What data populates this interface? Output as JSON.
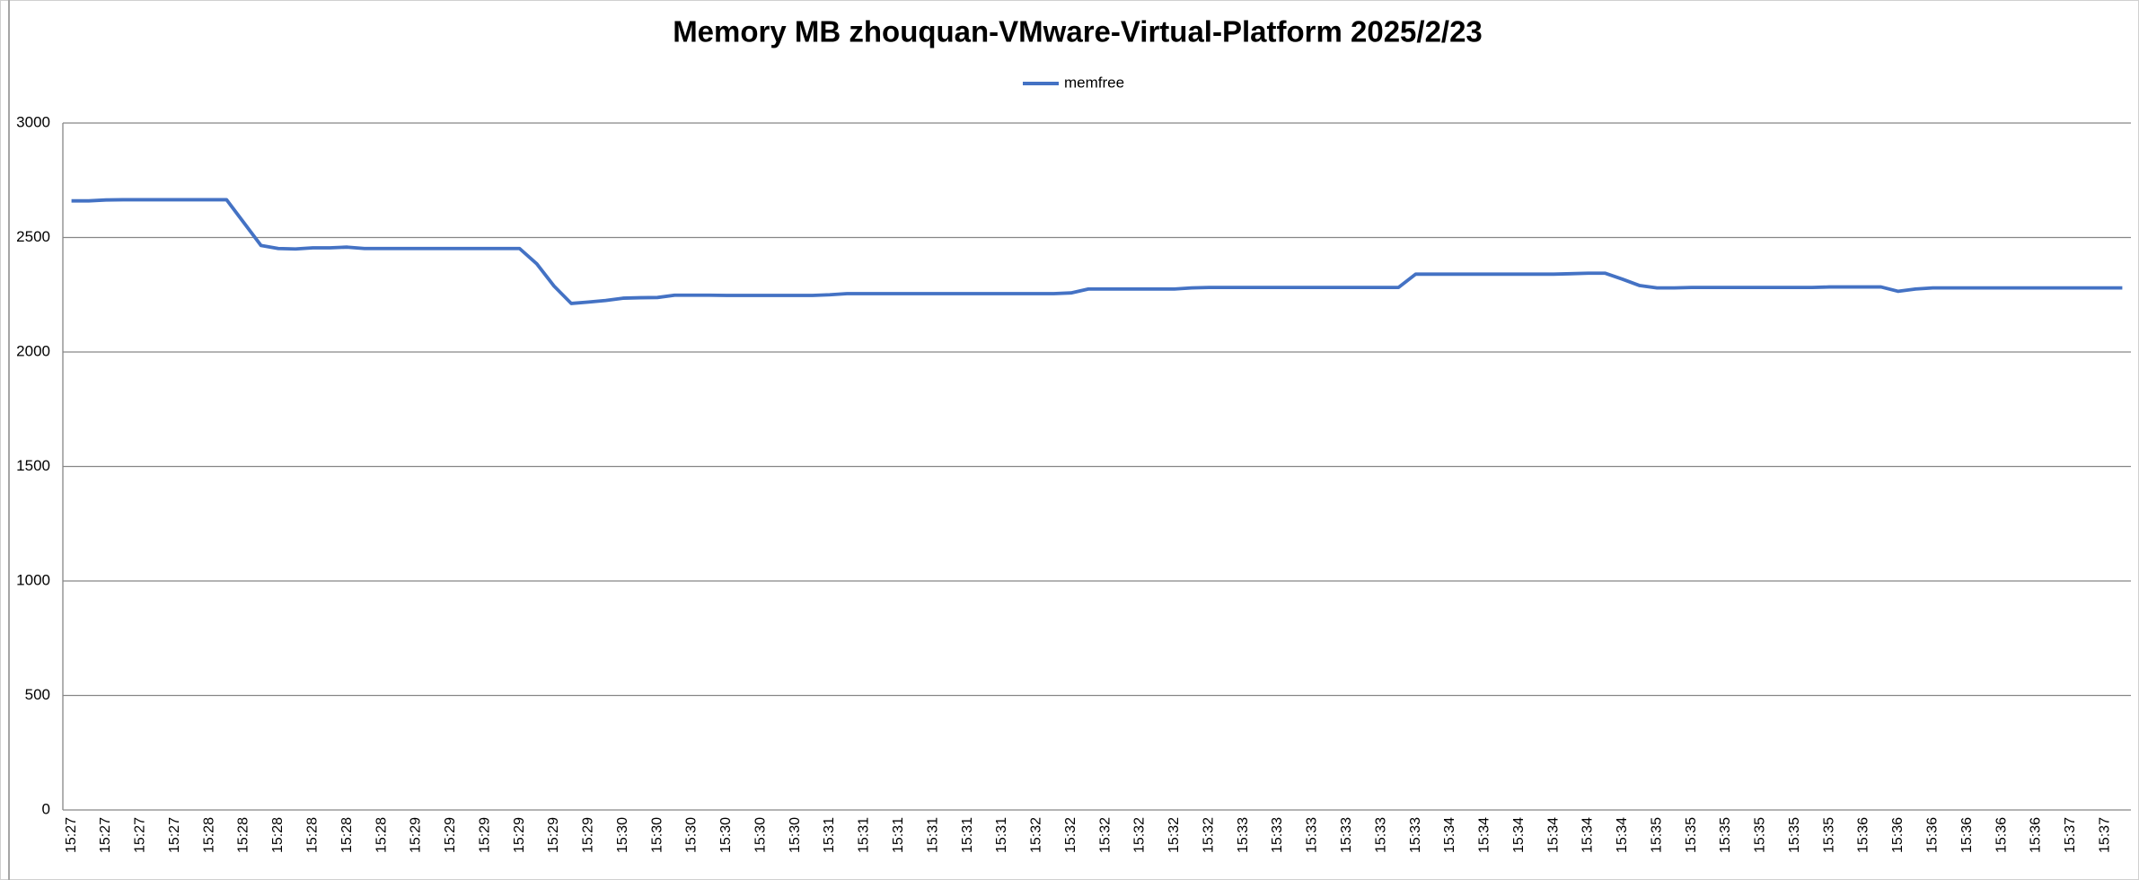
{
  "chart_data": {
    "type": "line",
    "title": "Memory MB zhouquan-VMware-Virtual-Platform  2025/2/23",
    "categories": [
      "15:27",
      null,
      "15:27",
      null,
      "15:27",
      null,
      "15:27",
      null,
      "15:28",
      null,
      "15:28",
      null,
      "15:28",
      null,
      "15:28",
      null,
      "15:28",
      null,
      "15:28",
      null,
      "15:29",
      null,
      "15:29",
      null,
      "15:29",
      null,
      "15:29",
      null,
      "15:29",
      null,
      "15:29",
      null,
      "15:30",
      null,
      "15:30",
      null,
      "15:30",
      null,
      "15:30",
      null,
      "15:30",
      null,
      "15:30",
      null,
      "15:31",
      null,
      "15:31",
      null,
      "15:31",
      null,
      "15:31",
      null,
      "15:31",
      null,
      "15:31",
      null,
      "15:32",
      null,
      "15:32",
      null,
      "15:32",
      null,
      "15:32",
      null,
      "15:32",
      null,
      "15:32",
      null,
      "15:33",
      null,
      "15:33",
      null,
      "15:33",
      null,
      "15:33",
      null,
      "15:33",
      null,
      "15:33",
      null,
      "15:34",
      null,
      "15:34",
      null,
      "15:34",
      null,
      "15:34",
      null,
      "15:34",
      null,
      "15:34",
      null,
      "15:35",
      null,
      "15:35",
      null,
      "15:35",
      null,
      "15:35",
      null,
      "15:35",
      null,
      "15:35",
      null,
      "15:36",
      null,
      "15:36",
      null,
      "15:36",
      null,
      "15:36",
      null,
      "15:36",
      null,
      "15:36",
      null,
      "15:37",
      null,
      "15:37",
      null
    ],
    "series": [
      {
        "name": "memfree",
        "color": "#4472c4",
        "values": [
          2660,
          2660,
          2664,
          2665,
          2665,
          2665,
          2665,
          2665,
          2665,
          2665,
          2565,
          2465,
          2452,
          2450,
          2455,
          2455,
          2458,
          2452,
          2452,
          2452,
          2452,
          2452,
          2452,
          2452,
          2452,
          2452,
          2452,
          2385,
          2288,
          2212,
          2218,
          2225,
          2235,
          2237,
          2238,
          2248,
          2248,
          2248,
          2247,
          2247,
          2247,
          2247,
          2247,
          2247,
          2250,
          2255,
          2255,
          2255,
          2255,
          2255,
          2255,
          2255,
          2255,
          2255,
          2255,
          2255,
          2255,
          2255,
          2258,
          2275,
          2275,
          2275,
          2275,
          2275,
          2275,
          2280,
          2282,
          2282,
          2282,
          2282,
          2282,
          2282,
          2282,
          2282,
          2282,
          2282,
          2282,
          2282,
          2340,
          2340,
          2340,
          2340,
          2340,
          2340,
          2340,
          2340,
          2340,
          2342,
          2344,
          2344,
          2318,
          2290,
          2280,
          2280,
          2282,
          2282,
          2282,
          2282,
          2282,
          2282,
          2282,
          2282,
          2284,
          2284,
          2284,
          2284,
          2265,
          2275,
          2280,
          2280,
          2280,
          2280,
          2280,
          2280,
          2280,
          2280,
          2280,
          2280,
          2280,
          2280
        ]
      }
    ],
    "ylim": [
      0,
      3000
    ],
    "yticks": [
      0,
      500,
      1000,
      1500,
      2000,
      2500,
      3000
    ],
    "grid": true,
    "legend": "top"
  }
}
